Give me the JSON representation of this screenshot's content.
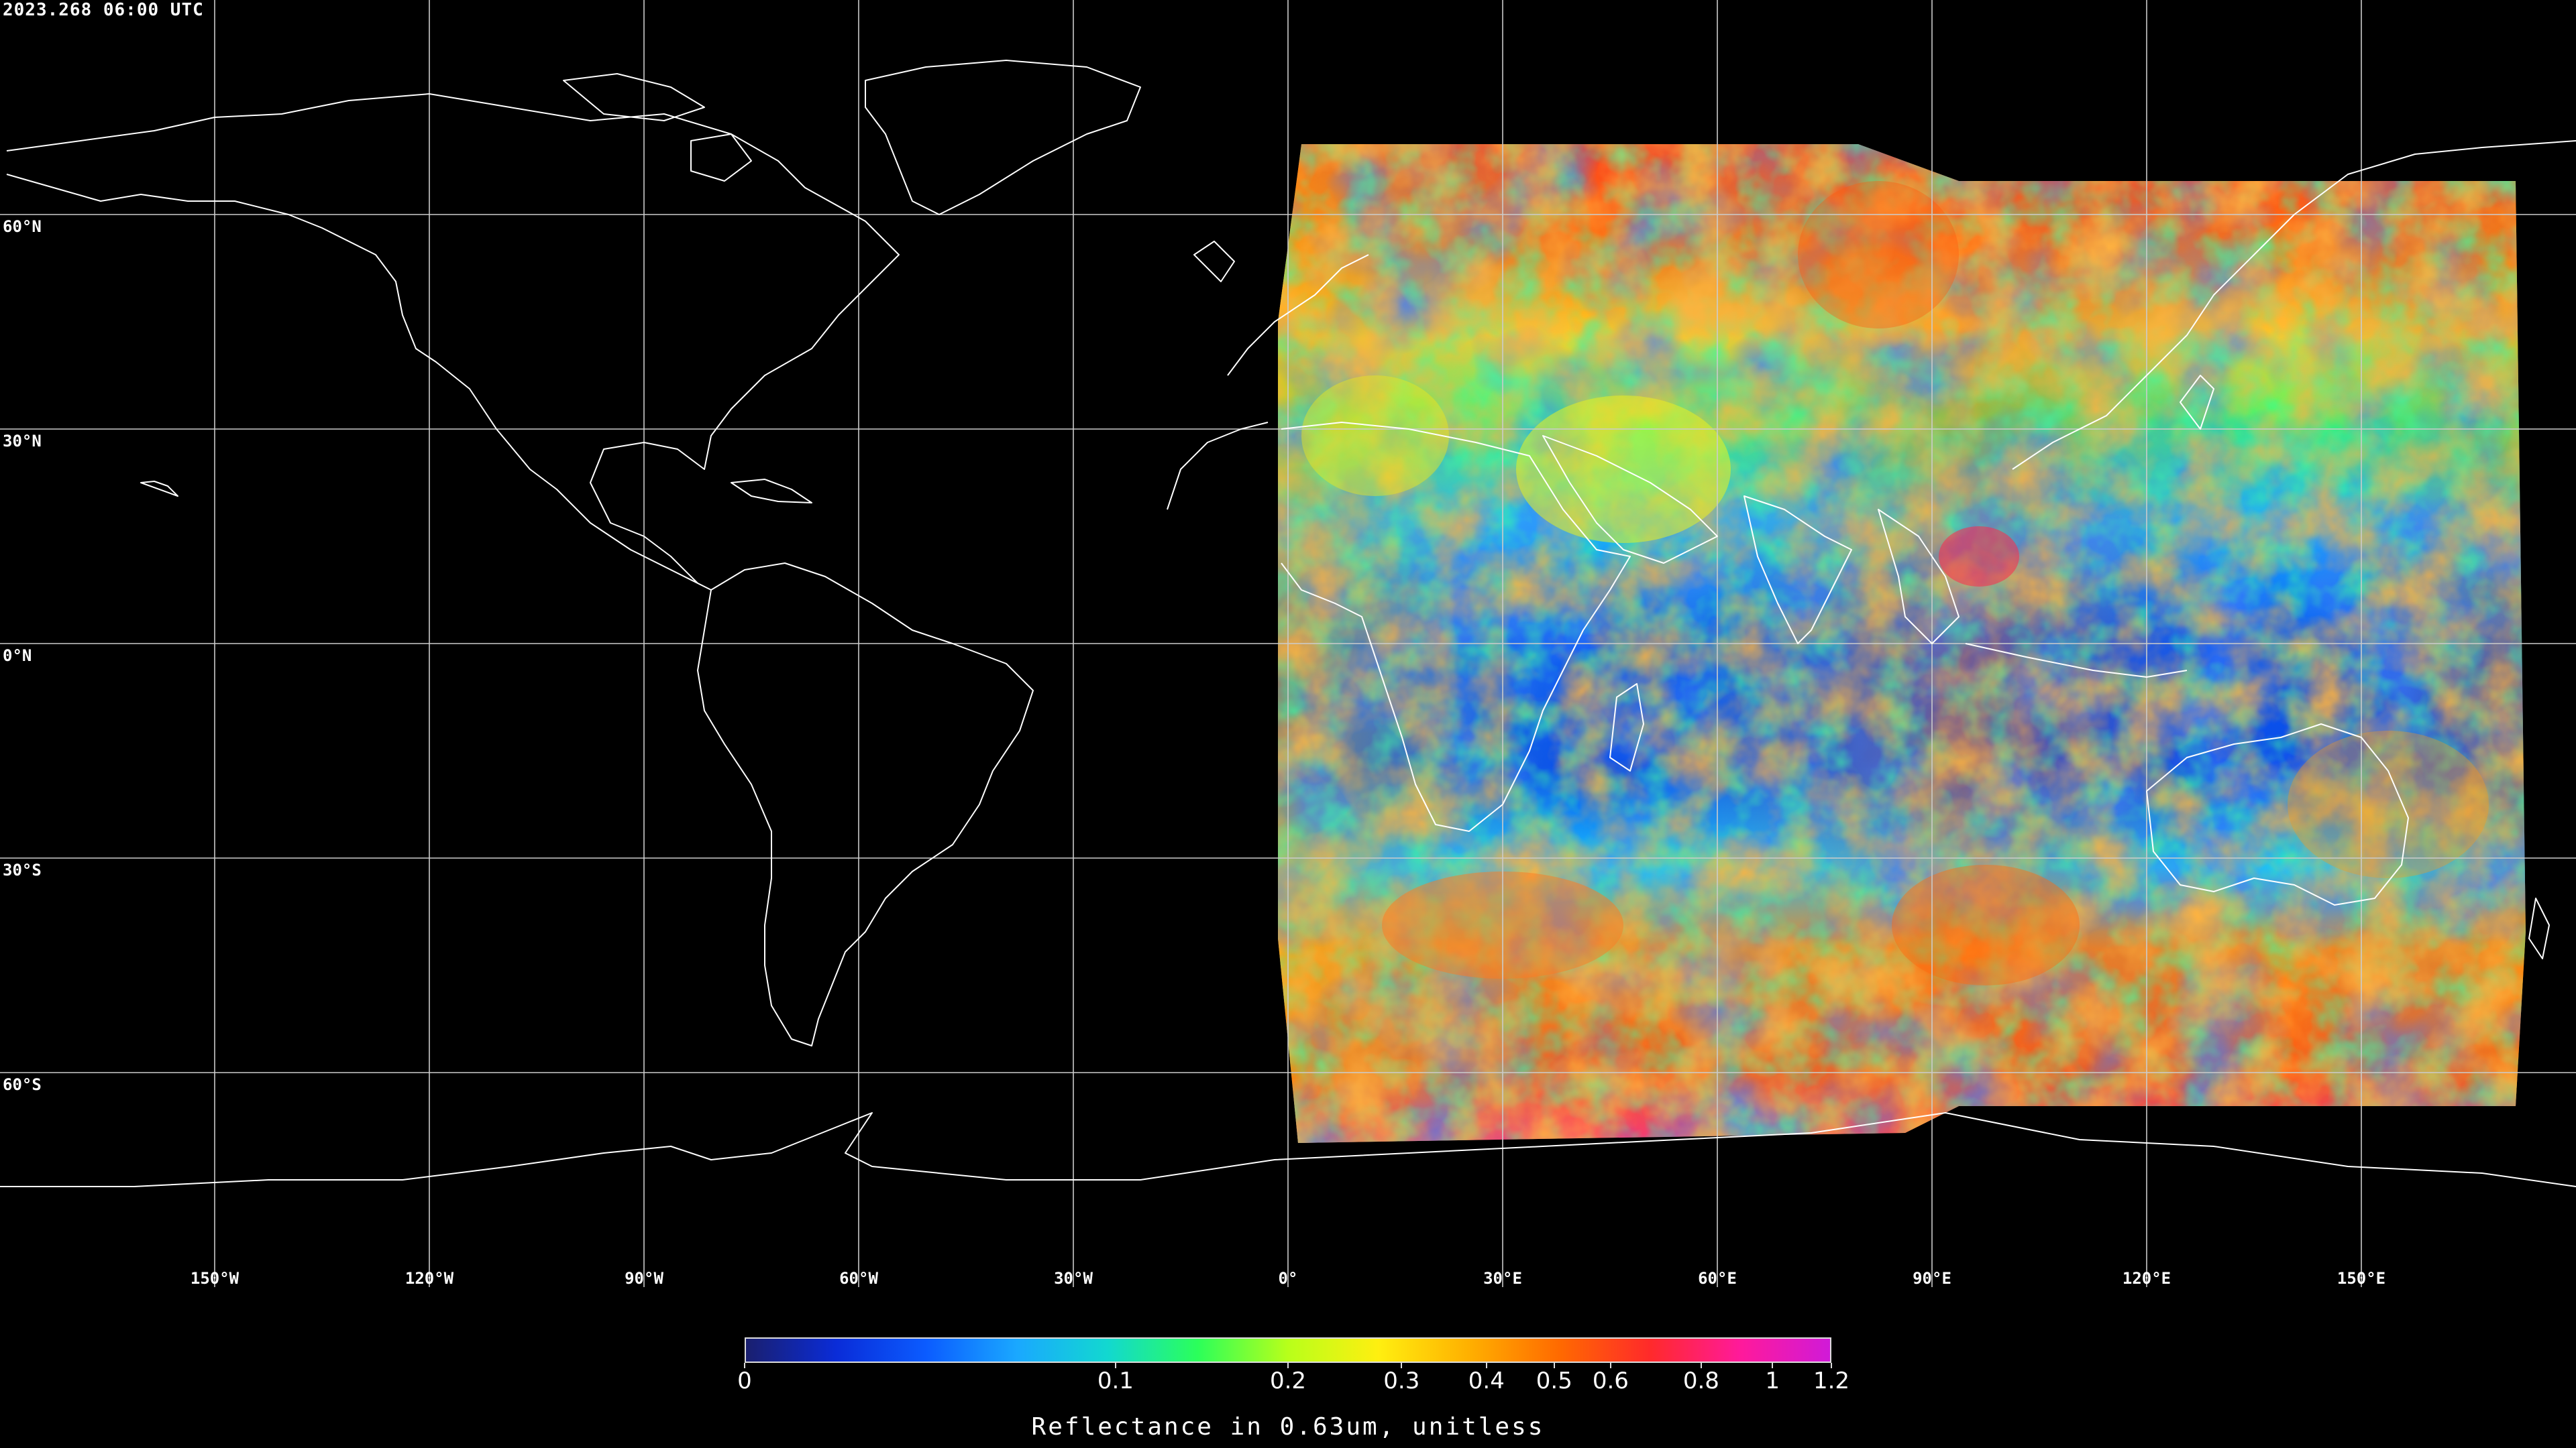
{
  "timestamp": "2023.268 06:00 UTC",
  "lat_labels": [
    {
      "text": "60°N",
      "lat": 60
    },
    {
      "text": "30°N",
      "lat": 30
    },
    {
      "text": "0°N",
      "lat": 0
    },
    {
      "text": "30°S",
      "lat": -30
    },
    {
      "text": "60°S",
      "lat": -60
    }
  ],
  "lon_labels": [
    {
      "text": "150°W",
      "lon": -150
    },
    {
      "text": "120°W",
      "lon": -120
    },
    {
      "text": "90°W",
      "lon": -90
    },
    {
      "text": "60°W",
      "lon": -60
    },
    {
      "text": "30°W",
      "lon": -30
    },
    {
      "text": "0°",
      "lon": 0
    },
    {
      "text": "30°E",
      "lon": 30
    },
    {
      "text": "60°E",
      "lon": 60
    },
    {
      "text": "90°E",
      "lon": 90
    },
    {
      "text": "120°E",
      "lon": 120
    },
    {
      "text": "150°E",
      "lon": 150
    }
  ],
  "colorbar": {
    "title": "Reflectance in 0.63um, unitless",
    "scale": "log",
    "min": 0,
    "max": 1.2,
    "ticks": [
      {
        "text": "0",
        "value": 0
      },
      {
        "text": "0.1",
        "value": 0.1
      },
      {
        "text": "0.2",
        "value": 0.2
      },
      {
        "text": "0.3",
        "value": 0.3
      },
      {
        "text": "0.4",
        "value": 0.4
      },
      {
        "text": "0.5",
        "value": 0.5
      },
      {
        "text": "0.6",
        "value": 0.6
      },
      {
        "text": "0.8",
        "value": 0.8
      },
      {
        "text": "1",
        "value": 1
      },
      {
        "text": "1.2",
        "value": 1.2
      }
    ],
    "colors": [
      "#1a1f6e",
      "#0a2cd8",
      "#0b5cff",
      "#1aa8ff",
      "#12d8d0",
      "#2bff5a",
      "#b8ff1a",
      "#ffef10",
      "#ffb000",
      "#ff6a00",
      "#ff2a2a",
      "#ff1a9a",
      "#d01ad8"
    ]
  },
  "map": {
    "projection": "equirectangular",
    "lon_range": [
      -180,
      180
    ],
    "lat_range": [
      -90,
      90
    ],
    "gridline_color": "#cccccc",
    "coastline_color": "#ffffff",
    "satellite_coverage_lon": [
      0,
      176
    ]
  }
}
